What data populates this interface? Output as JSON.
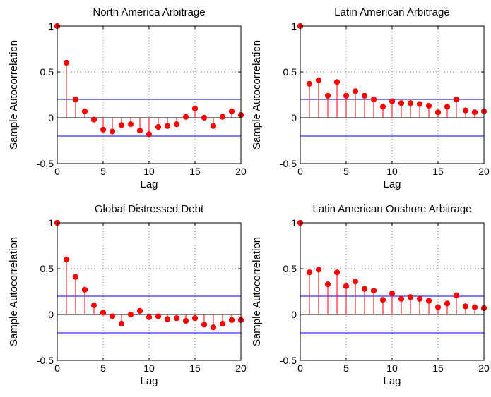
{
  "colors": {
    "stem": "#ff0000",
    "bound": "#0000ff",
    "axis": "#000000",
    "grid": "#808080"
  },
  "chart_data": [
    {
      "type": "stem",
      "title": "North America Arbitrage",
      "xlabel": "Lag",
      "ylabel": "Sample Autocorrelation",
      "xlim": [
        0,
        20
      ],
      "ylim": [
        -0.5,
        1
      ],
      "xticks": [
        "0",
        "5",
        "10",
        "15",
        "20"
      ],
      "yticks": [
        "-0.5",
        "0",
        "0.5",
        "1"
      ],
      "grid": true,
      "bounds": [
        0.2,
        -0.2
      ],
      "lags": [
        0,
        1,
        2,
        3,
        4,
        5,
        6,
        7,
        8,
        9,
        10,
        11,
        12,
        13,
        14,
        15,
        16,
        17,
        18,
        19,
        20
      ],
      "values": [
        1,
        0.6,
        0.2,
        0.07,
        -0.02,
        -0.13,
        -0.15,
        -0.08,
        -0.07,
        -0.14,
        -0.18,
        -0.1,
        -0.09,
        -0.07,
        0.01,
        0.1,
        0,
        -0.09,
        0.01,
        0.07,
        0.03
      ]
    },
    {
      "type": "stem",
      "title": "Latin American Arbitrage",
      "xlabel": "Lag",
      "ylabel": "Sample Autocorrelation",
      "xlim": [
        0,
        20
      ],
      "ylim": [
        -0.5,
        1
      ],
      "xticks": [
        "0",
        "5",
        "10",
        "15",
        "20"
      ],
      "yticks": [
        "-0.5",
        "0",
        "0.5",
        "1"
      ],
      "grid": true,
      "bounds": [
        0.2,
        -0.2
      ],
      "lags": [
        0,
        1,
        2,
        3,
        4,
        5,
        6,
        7,
        8,
        9,
        10,
        11,
        12,
        13,
        14,
        15,
        16,
        17,
        18,
        19,
        20
      ],
      "values": [
        1,
        0.37,
        0.41,
        0.24,
        0.39,
        0.24,
        0.29,
        0.24,
        0.2,
        0.12,
        0.18,
        0.16,
        0.16,
        0.15,
        0.13,
        0.06,
        0.12,
        0.2,
        0.08,
        0.06,
        0.07
      ]
    },
    {
      "type": "stem",
      "title": "Global Distressed Debt",
      "xlabel": "Lag",
      "ylabel": "Sample Autocorrelation",
      "xlim": [
        0,
        20
      ],
      "ylim": [
        -0.5,
        1
      ],
      "xticks": [
        "0",
        "5",
        "10",
        "15",
        "20"
      ],
      "yticks": [
        "-0.5",
        "0",
        "0.5",
        "1"
      ],
      "grid": true,
      "bounds": [
        0.2,
        -0.2
      ],
      "lags": [
        0,
        1,
        2,
        3,
        4,
        5,
        6,
        7,
        8,
        9,
        10,
        11,
        12,
        13,
        14,
        15,
        16,
        17,
        18,
        19,
        20
      ],
      "values": [
        1,
        0.6,
        0.41,
        0.27,
        0.1,
        0.02,
        -0.02,
        -0.1,
        0,
        0.04,
        -0.03,
        -0.02,
        -0.05,
        -0.04,
        -0.07,
        -0.04,
        -0.11,
        -0.14,
        -0.1,
        -0.06,
        -0.06
      ]
    },
    {
      "type": "stem",
      "title": "Latin American Onshore Arbitrage",
      "xlabel": "Lag",
      "ylabel": "Sample Autocorrelation",
      "xlim": [
        0,
        20
      ],
      "ylim": [
        -0.5,
        1
      ],
      "xticks": [
        "0",
        "5",
        "10",
        "15",
        "20"
      ],
      "yticks": [
        "-0.5",
        "0",
        "0.5",
        "1"
      ],
      "grid": true,
      "bounds": [
        0.2,
        -0.2
      ],
      "lags": [
        0,
        1,
        2,
        3,
        4,
        5,
        6,
        7,
        8,
        9,
        10,
        11,
        12,
        13,
        14,
        15,
        16,
        17,
        18,
        19,
        20
      ],
      "values": [
        1,
        0.46,
        0.49,
        0.33,
        0.46,
        0.31,
        0.36,
        0.28,
        0.26,
        0.16,
        0.23,
        0.17,
        0.19,
        0.17,
        0.15,
        0.08,
        0.12,
        0.21,
        0.09,
        0.08,
        0.07
      ]
    }
  ]
}
